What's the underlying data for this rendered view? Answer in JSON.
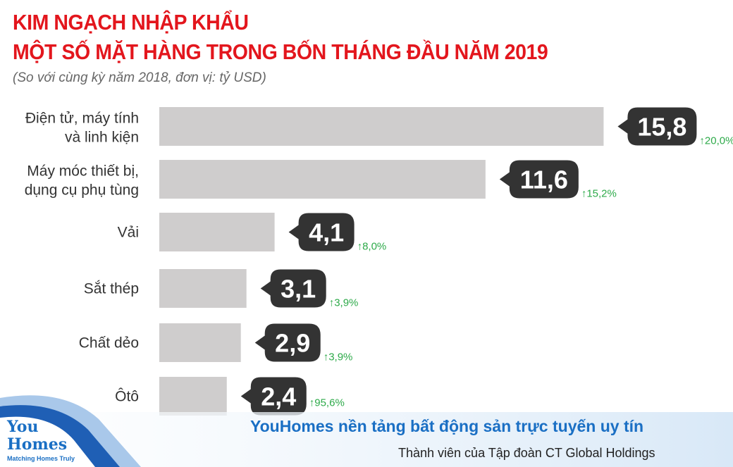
{
  "header": {
    "title_line1": "KIM NGẠCH NHẬP KHẨU",
    "title_line2": "MỘT SỐ MẶT HÀNG TRONG BỐN THÁNG ĐẦU NĂM 2019",
    "subtitle": "(So với cùng kỳ năm 2018, đơn vị: tỷ USD)"
  },
  "chart_data": {
    "type": "bar",
    "orientation": "horizontal",
    "title": "KIM NGẠCH NHẬP KHẨU MỘT SỐ MẶT HÀNG TRONG BỐN THÁNG ĐẦU NĂM 2019",
    "unit": "tỷ USD",
    "categories": [
      [
        "Điện tử, máy tính",
        "và linh kiện"
      ],
      [
        "Máy móc thiết bị,",
        "dụng cụ phụ tùng"
      ],
      [
        "Vải"
      ],
      [
        "Sắt thép"
      ],
      [
        "Chất dẻo"
      ],
      [
        "Ôtô"
      ]
    ],
    "values": [
      15.8,
      11.6,
      4.1,
      3.1,
      2.9,
      2.4
    ],
    "value_labels": [
      "15,8",
      "11,6",
      "4,1",
      "3,1",
      "2,9",
      "2,4"
    ],
    "growth_labels": [
      "20,0%",
      "15,2%",
      "8,0%",
      "3,9%",
      "3,9%",
      "95,6%"
    ],
    "colors": {
      "bar": "#cfcdcd",
      "callout": "#333333",
      "growth": "#2eaa4a"
    }
  },
  "footer": {
    "slogan": "YouHomes nền tảng bất động sản trực tuyến uy tín",
    "member": "Thành viên của Tập đoàn CT Global Holdings",
    "logo_line1": "You",
    "logo_line2": "Homes",
    "logo_tagline": "Matching Homes Truly"
  }
}
